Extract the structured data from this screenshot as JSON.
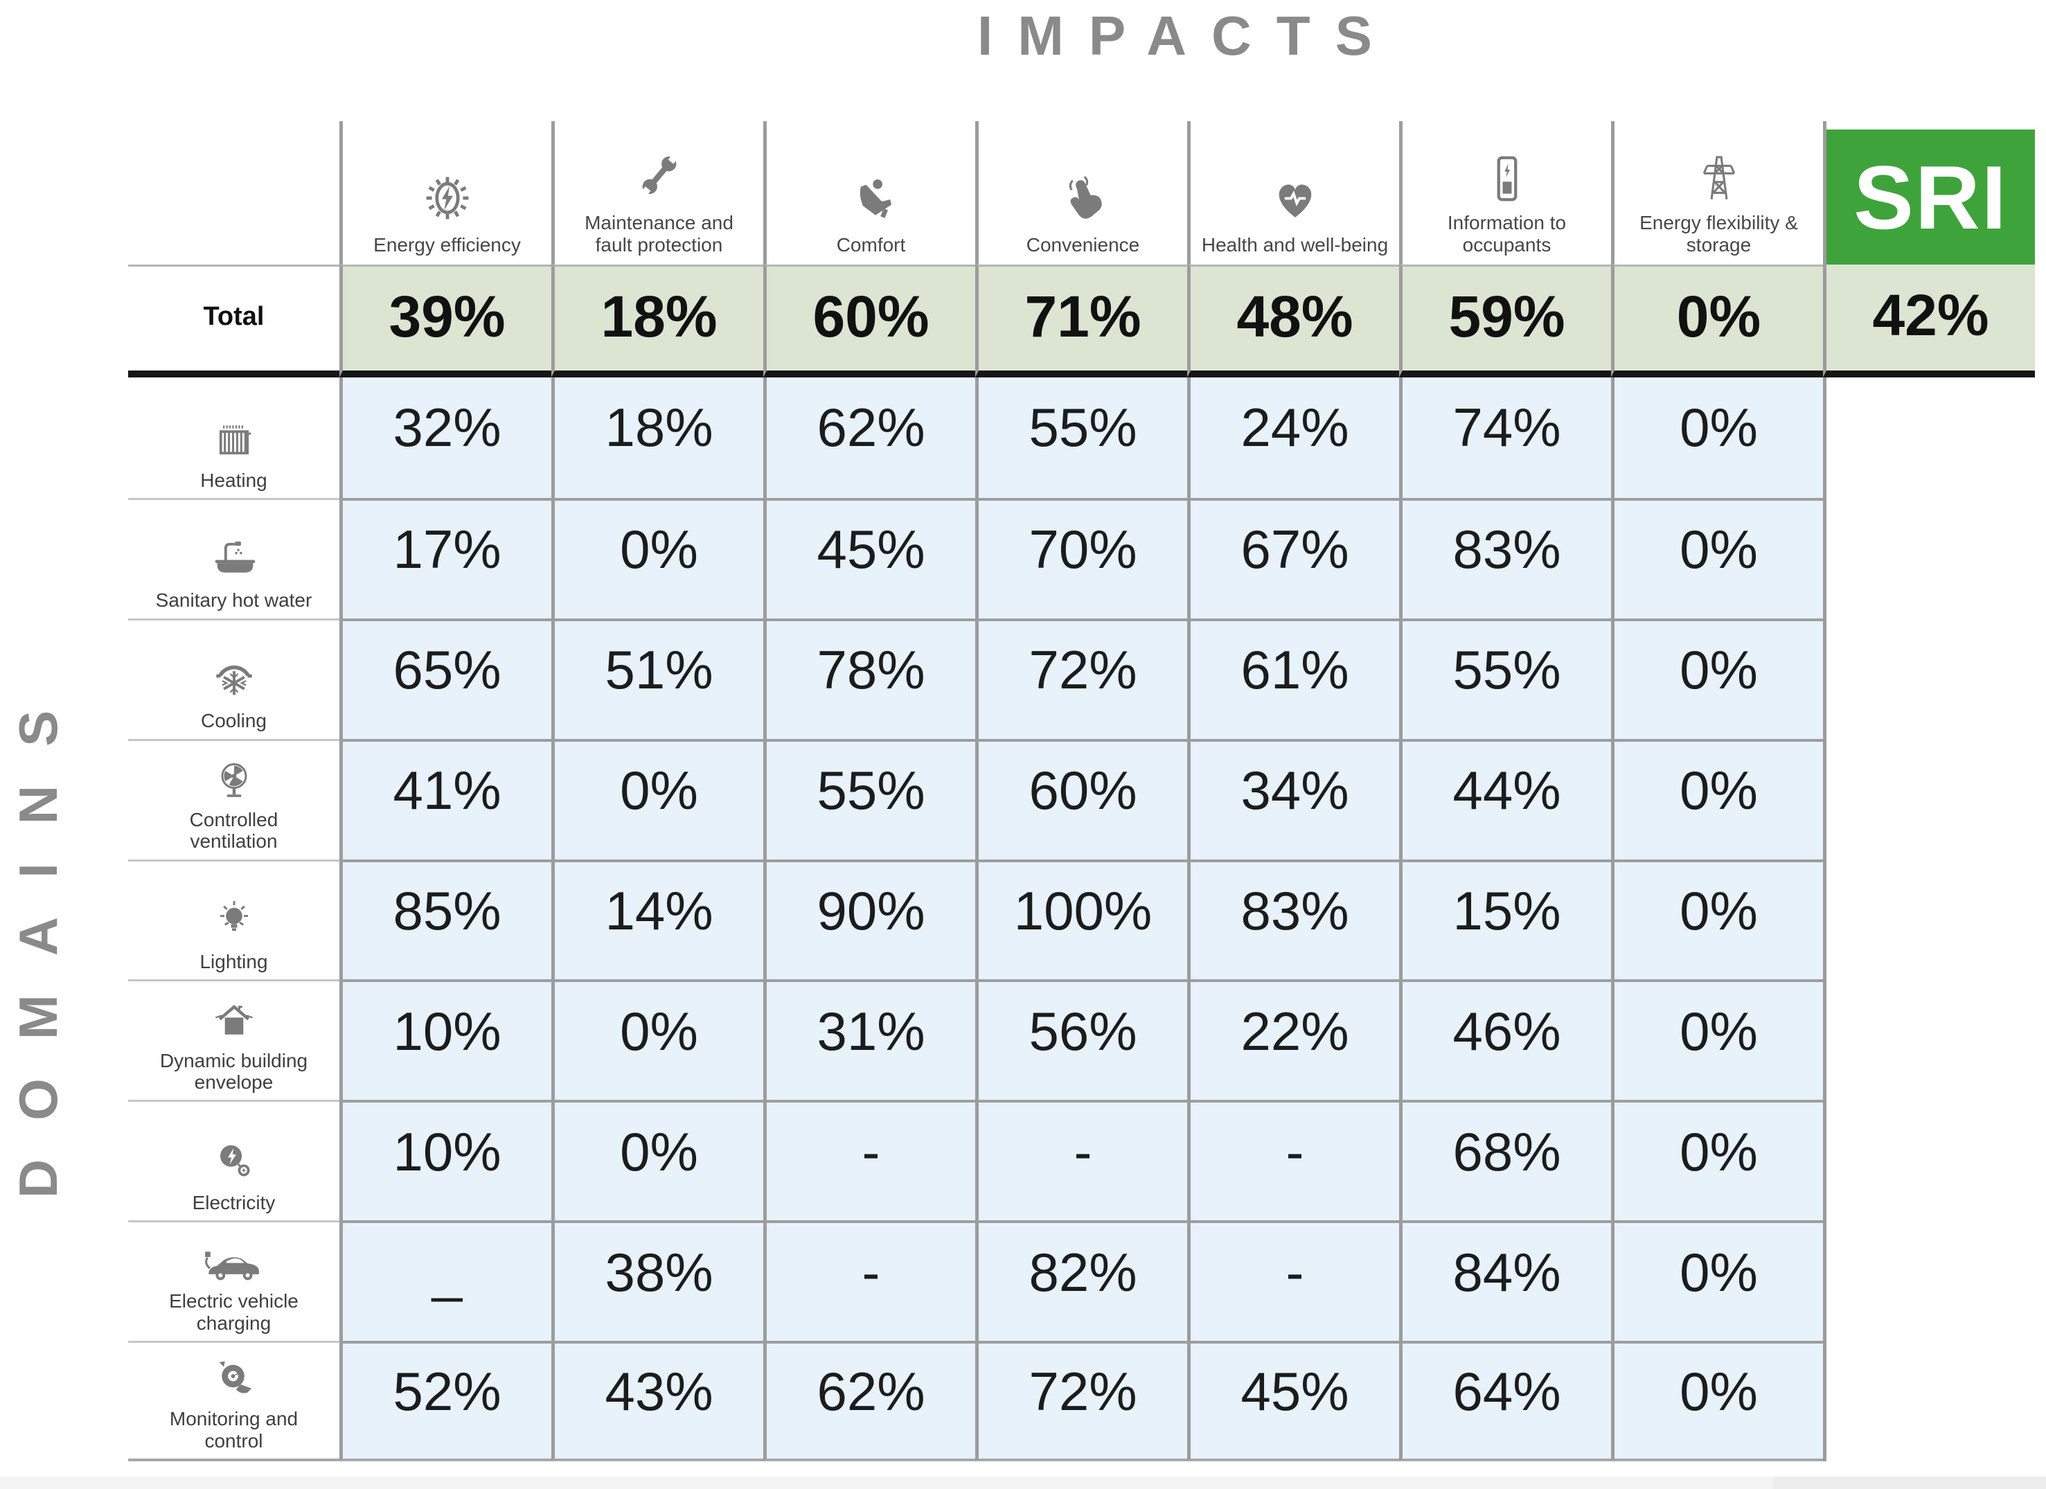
{
  "colors": {
    "sri_green": "#3fa33c",
    "total_row_bg": "#dbe5d1",
    "cell_blue": "#e7f2fb",
    "grid_line": "#9c9c9c",
    "title_gray": "#8a8a8a",
    "divider_black": "#161616"
  },
  "chart_data": {
    "type": "table",
    "title": "IMPACTS",
    "row_axis_label": "DOMAINS",
    "corner_label": "Total",
    "legend_position": "none",
    "grid": true,
    "columns": [
      {
        "label": "Energy efficiency",
        "icon": "gear-bolt-icon",
        "total": "39%"
      },
      {
        "label": "Maintenance and fault protection",
        "icon": "wrench-icon",
        "total": "18%"
      },
      {
        "label": "Comfort",
        "icon": "recliner-icon",
        "total": "60%"
      },
      {
        "label": "Convenience",
        "icon": "tap-hand-icon",
        "total": "71%"
      },
      {
        "label": "Health and well-being",
        "icon": "heart-pulse-icon",
        "total": "48%"
      },
      {
        "label": "Information to occupants",
        "icon": "smartphone-icon",
        "total": "59%"
      },
      {
        "label": "Energy flexibility & storage",
        "icon": "pylon-icon",
        "total": "0%"
      },
      {
        "label": "SRI",
        "icon": "sri-badge",
        "total": "42%"
      }
    ],
    "rows": [
      {
        "label": "Heating",
        "icon": "radiator-icon",
        "values": [
          "32%",
          "18%",
          "62%",
          "55%",
          "24%",
          "74%",
          "0%"
        ]
      },
      {
        "label": "Sanitary hot water",
        "icon": "bathtub-icon",
        "values": [
          "17%",
          "0%",
          "45%",
          "70%",
          "67%",
          "83%",
          "0%"
        ]
      },
      {
        "label": "Cooling",
        "icon": "snowflake-icon",
        "values": [
          "65%",
          "51%",
          "78%",
          "72%",
          "61%",
          "55%",
          "0%"
        ]
      },
      {
        "label": "Controlled ventilation",
        "icon": "fan-icon",
        "values": [
          "41%",
          "0%",
          "55%",
          "60%",
          "34%",
          "44%",
          "0%"
        ]
      },
      {
        "label": "Lighting",
        "icon": "lightbulb-icon",
        "values": [
          "85%",
          "14%",
          "90%",
          "100%",
          "83%",
          "15%",
          "0%"
        ]
      },
      {
        "label": "Dynamic building envelope",
        "icon": "house-icon",
        "values": [
          "10%",
          "0%",
          "31%",
          "56%",
          "22%",
          "46%",
          "0%"
        ]
      },
      {
        "label": "Electricity",
        "icon": "plug-bolt-icon",
        "values": [
          "10%",
          "0%",
          "-",
          "-",
          "-",
          "68%",
          "0%"
        ]
      },
      {
        "label": "Electric vehicle charging",
        "icon": "electric-car-icon",
        "values": [
          "_",
          "38%",
          "-",
          "82%",
          "-",
          "84%",
          "0%"
        ]
      },
      {
        "label": "Monitoring and control",
        "icon": "gauge-icon",
        "values": [
          "52%",
          "43%",
          "62%",
          "72%",
          "45%",
          "64%",
          "0%"
        ]
      }
    ]
  }
}
